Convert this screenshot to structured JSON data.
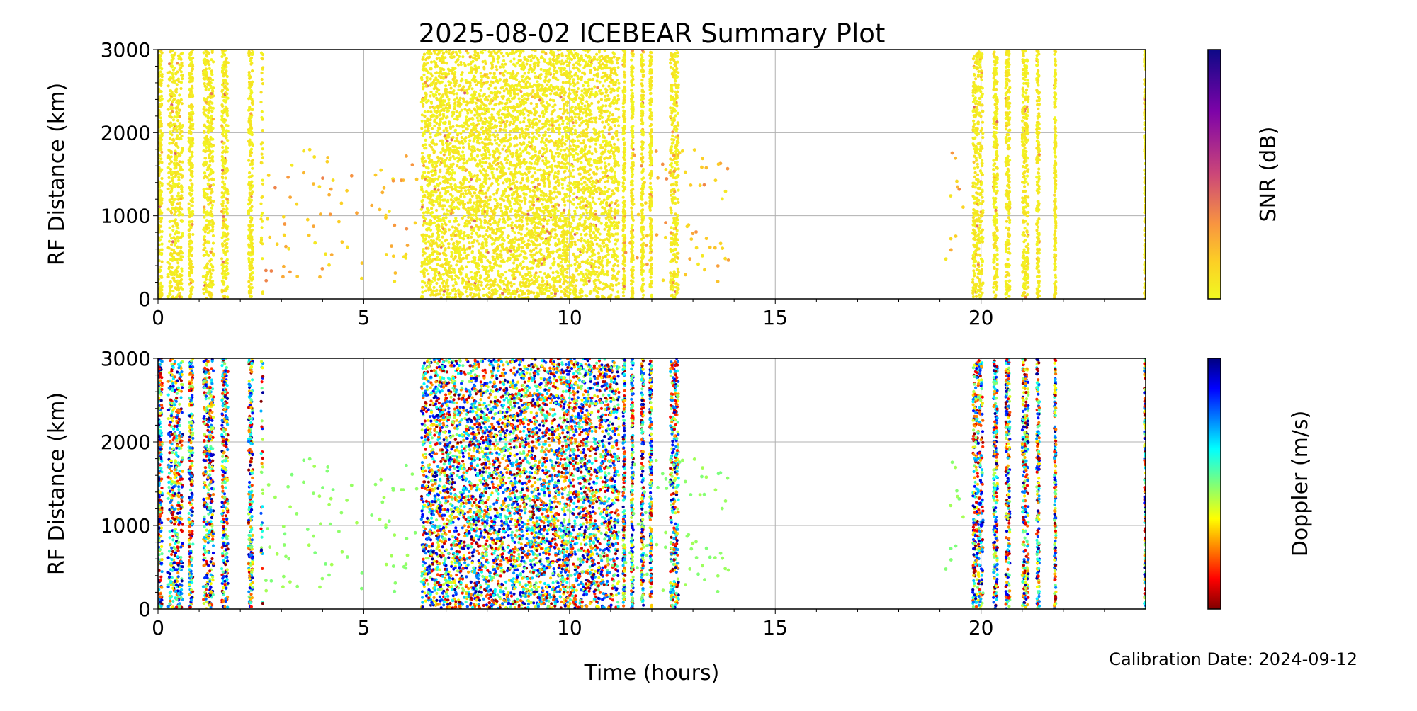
{
  "chart_data": [
    {
      "type": "scatter",
      "title": "2025-08-02 ICEBEAR Summary Plot",
      "xlabel": "Time (hours)",
      "ylabel": "RF Distance (km)",
      "xlim": [
        0,
        24
      ],
      "ylim": [
        0,
        3000
      ],
      "xticks": [
        "0",
        "5",
        "10",
        "15",
        "20"
      ],
      "yticks": [
        "0",
        "1000",
        "2000",
        "3000"
      ],
      "grid": true,
      "color_variable": "snr",
      "colorbar": {
        "label": "SNR (dB)",
        "range": [
          0,
          20
        ],
        "ticks": [
          "0",
          "5",
          "10",
          "15",
          "20"
        ],
        "colormap": "plasma_r"
      }
    },
    {
      "type": "scatter",
      "title": "",
      "xlabel": "Time (hours)",
      "ylabel": "RF Distance (km)",
      "xlim": [
        0,
        24
      ],
      "ylim": [
        0,
        3000
      ],
      "xticks": [
        "0",
        "5",
        "10",
        "15",
        "20"
      ],
      "yticks": [
        "0",
        "1000",
        "2000",
        "3000"
      ],
      "grid": true,
      "color_variable": "doppler",
      "colorbar": {
        "label": "Doppler (m/s)",
        "range": [
          -900,
          900
        ],
        "ticks": [
          "−500",
          "0",
          "500"
        ],
        "tick_values": [
          -500,
          0,
          500
        ],
        "colormap": "jet"
      }
    }
  ],
  "activity_intervals_hours": [
    {
      "start": 0.0,
      "end": 0.1,
      "density": "medium"
    },
    {
      "start": 0.25,
      "end": 0.6,
      "density": "medium"
    },
    {
      "start": 0.75,
      "end": 0.85,
      "density": "medium"
    },
    {
      "start": 1.1,
      "end": 1.35,
      "density": "medium"
    },
    {
      "start": 1.55,
      "end": 1.7,
      "density": "medium"
    },
    {
      "start": 2.2,
      "end": 2.3,
      "density": "medium"
    },
    {
      "start": 2.5,
      "end": 2.55,
      "density": "low"
    },
    {
      "start": 2.6,
      "end": 6.3,
      "density": "sparse"
    },
    {
      "start": 6.4,
      "end": 11.2,
      "density": "high"
    },
    {
      "start": 11.3,
      "end": 11.35,
      "density": "medium"
    },
    {
      "start": 11.5,
      "end": 11.55,
      "density": "medium"
    },
    {
      "start": 11.75,
      "end": 11.8,
      "density": "medium"
    },
    {
      "start": 11.95,
      "end": 12.0,
      "density": "medium"
    },
    {
      "start": 12.45,
      "end": 12.65,
      "density": "medium"
    },
    {
      "start": 11.2,
      "end": 14.0,
      "density": "sparse"
    },
    {
      "start": 19.1,
      "end": 19.6,
      "density": "sparse"
    },
    {
      "start": 19.8,
      "end": 20.05,
      "density": "medium"
    },
    {
      "start": 20.3,
      "end": 20.4,
      "density": "medium"
    },
    {
      "start": 20.6,
      "end": 20.7,
      "density": "medium"
    },
    {
      "start": 21.0,
      "end": 21.15,
      "density": "medium"
    },
    {
      "start": 21.35,
      "end": 21.42,
      "density": "medium"
    },
    {
      "start": 21.78,
      "end": 21.82,
      "density": "medium"
    },
    {
      "start": 23.97,
      "end": 24.0,
      "density": "medium"
    }
  ],
  "footer": {
    "calibration": "Calibration Date: 2024-09-12"
  }
}
